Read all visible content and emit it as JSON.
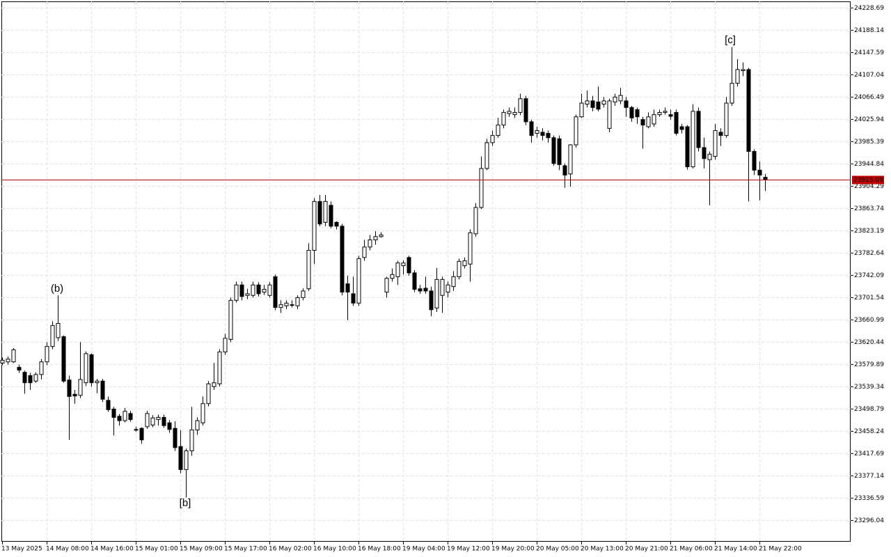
{
  "chart_data": {
    "type": "candlestick",
    "categories": [
      "13 May 2025",
      null,
      null,
      null,
      null,
      null,
      null,
      null,
      "14 May 08:00",
      null,
      null,
      null,
      null,
      null,
      null,
      null,
      "14 May 16:00",
      null,
      null,
      null,
      null,
      null,
      null,
      null,
      "15 May 01:00",
      null,
      null,
      null,
      null,
      null,
      null,
      null,
      "15 May 09:00",
      null,
      null,
      null,
      null,
      null,
      null,
      null,
      "15 May 17:00",
      null,
      null,
      null,
      null,
      null,
      null,
      null,
      "16 May 02:00",
      null,
      null,
      null,
      null,
      null,
      null,
      null,
      "16 May 10:00",
      null,
      null,
      null,
      null,
      null,
      null,
      null,
      "16 May 18:00",
      null,
      null,
      null,
      null,
      null,
      null,
      null,
      "19 May 04:00",
      null,
      null,
      null,
      null,
      null,
      null,
      null,
      "19 May 12:00",
      null,
      null,
      null,
      null,
      null,
      null,
      null,
      "19 May 20:00",
      null,
      null,
      null,
      null,
      null,
      null,
      null,
      "20 May 05:00",
      null,
      null,
      null,
      null,
      null,
      null,
      null,
      "20 May 13:00",
      null,
      null,
      null,
      null,
      null,
      null,
      null,
      "20 May 21:00",
      null,
      null,
      null,
      null,
      null,
      null,
      null,
      "21 May 06:00",
      null,
      null,
      null,
      null,
      null,
      null,
      null,
      "21 May 14:00",
      null,
      null,
      null,
      null,
      null,
      null,
      null,
      "21 May 22:00",
      null
    ],
    "open": [
      23582,
      23584,
      23584,
      23574,
      23565,
      23559,
      23549,
      23561,
      23584,
      23612,
      23628,
      23630,
      23551,
      23525,
      23523,
      23546,
      23597,
      23546,
      23549,
      23514,
      23498,
      23485,
      23477,
      23490,
      23461,
      23463,
      23466,
      23469,
      23479,
      23483,
      23473,
      23463,
      23430,
      23388,
      23422,
      23460,
      23473,
      23508,
      23539,
      23544,
      23602,
      23625,
      23696,
      23724,
      23705,
      23705,
      23724,
      23711,
      23705,
      23739,
      23683,
      23686,
      23688,
      23686,
      23701,
      23717,
      23787,
      23876,
      23838,
      23869,
      23838,
      23831,
      23726,
      23708,
      23691,
      23774,
      23793,
      23806,
      23812,
      23711,
      23736,
      23739,
      23759,
      23774,
      23746,
      23717,
      23718,
      23713,
      23682,
      23705,
      23711,
      23721,
      23739,
      23759,
      23762,
      23817,
      23865,
      23936,
      23983,
      23996,
      24015,
      24036,
      24034,
      24038,
      24063,
      24021,
      24000,
      24002,
      24000,
      23992,
      23990,
      23941,
      23926,
      23979,
      24030,
      24053,
      24059,
      24057,
      24053,
      24009,
      24057,
      24059,
      24059,
      24047,
      24043,
      24025,
      24012,
      24017,
      24034,
      24038,
      24034,
      24038,
      24012,
      24012,
      23939,
      24040,
      23974,
      23952,
      23958,
      24002,
      23996,
      24055,
      24091,
      24114,
      24116,
      23967,
      23933,
      23920
    ],
    "high": [
      23592,
      23594,
      23609,
      23579,
      23568,
      23564,
      23565,
      23589,
      23620,
      23658,
      23705,
      23632,
      23559,
      23533,
      23620,
      23603,
      23599,
      23553,
      23553,
      23521,
      23502,
      23489,
      23500,
      23495,
      23466,
      23465,
      23495,
      23487,
      23488,
      23488,
      23478,
      23476,
      23460,
      23426,
      23502,
      23483,
      23521,
      23549,
      23582,
      23607,
      23635,
      23701,
      23730,
      23730,
      23717,
      23730,
      23729,
      23724,
      23729,
      23743,
      23696,
      23696,
      23696,
      23705,
      23718,
      23800,
      23882,
      23888,
      23888,
      23876,
      23840,
      23835,
      23741,
      23739,
      23777,
      23806,
      23815,
      23822,
      23820,
      23739,
      23754,
      23768,
      23769,
      23777,
      23751,
      23724,
      23739,
      23721,
      23755,
      23739,
      23730,
      23749,
      23772,
      23774,
      23825,
      23873,
      23958,
      23990,
      24005,
      24028,
      24043,
      24047,
      24047,
      24072,
      24068,
      24025,
      24012,
      24009,
      24005,
      23996,
      23996,
      23945,
      23980,
      24034,
      24072,
      24078,
      24068,
      24085,
      24066,
      24063,
      24072,
      24083,
      24066,
      24050,
      24047,
      24030,
      24038,
      24043,
      24043,
      24047,
      24043,
      24043,
      24017,
      24015,
      24053,
      24047,
      23992,
      23967,
      24017,
      24009,
      24066,
      24157,
      24135,
      24129,
      24119,
      23971,
      23949,
      23926
    ],
    "low": [
      23578,
      23579,
      23582,
      23564,
      23526,
      23533,
      23546,
      23552,
      23578,
      23607,
      23622,
      23546,
      23442,
      23508,
      23518,
      23540,
      23539,
      23527,
      23511,
      23493,
      23450,
      23468,
      23474,
      23475,
      23457,
      23435,
      23462,
      23465,
      23468,
      23464,
      23455,
      23422,
      23381,
      23337,
      23413,
      23451,
      23468,
      23503,
      23533,
      23539,
      23597,
      23620,
      23692,
      23696,
      23698,
      23701,
      23703,
      23706,
      23701,
      23678,
      23673,
      23680,
      23683,
      23680,
      23696,
      23713,
      23762,
      23831,
      23831,
      23827,
      23825,
      23705,
      23660,
      23686,
      23686,
      23768,
      23787,
      23797,
      23810,
      23701,
      23730,
      23724,
      23743,
      23741,
      23711,
      23708,
      23708,
      23667,
      23675,
      23673,
      23701,
      23713,
      23734,
      23754,
      23730,
      23812,
      23862,
      23933,
      23977,
      23992,
      24009,
      24030,
      24028,
      24033,
      24015,
      23983,
      23992,
      23987,
      23983,
      23941,
      23933,
      23901,
      23903,
      23974,
      24028,
      24047,
      24040,
      24040,
      24047,
      24002,
      24050,
      24053,
      24030,
      24021,
      24017,
      23972,
      24009,
      24012,
      24030,
      24034,
      24025,
      23996,
      24000,
      23934,
      23936,
      23967,
      23936,
      23869,
      23952,
      23977,
      23992,
      24050,
      24085,
      24104,
      23876,
      23924,
      23878,
      23895
    ],
    "close": [
      23587,
      23589,
      23606,
      23569,
      23546,
      23546,
      23561,
      23584,
      23612,
      23650,
      23654,
      23549,
      23521,
      23522,
      23552,
      23599,
      23546,
      23549,
      23516,
      23497,
      23483,
      23477,
      23494,
      23479,
      23461,
      23442,
      23490,
      23482,
      23483,
      23468,
      23461,
      23428,
      23388,
      23422,
      23460,
      23477,
      23508,
      23544,
      23546,
      23602,
      23627,
      23696,
      23724,
      23703,
      23708,
      23724,
      23708,
      23716,
      23724,
      23683,
      23688,
      23691,
      23688,
      23701,
      23713,
      23787,
      23876,
      23835,
      23876,
      23831,
      23831,
      23711,
      23711,
      23691,
      23772,
      23793,
      23806,
      23812,
      23815,
      23736,
      23743,
      23764,
      23764,
      23746,
      23716,
      23713,
      23713,
      23679,
      23734,
      23734,
      23724,
      23739,
      23767,
      23768,
      23819,
      23865,
      23936,
      23983,
      23996,
      24015,
      24038,
      24040,
      24038,
      24063,
      24021,
      23996,
      24005,
      23996,
      23992,
      23945,
      23943,
      23924,
      23979,
      24030,
      24055,
      24059,
      24047,
      24044,
      24059,
      24059,
      24066,
      24069,
      24047,
      24028,
      24030,
      24015,
      24030,
      24034,
      24038,
      24040,
      24031,
      24000,
      24007,
      23939,
      24040,
      23974,
      23954,
      23962,
      24005,
      23996,
      24055,
      24091,
      24116,
      24116,
      23967,
      23933,
      23924,
      23915.09
    ],
    "bull_color": "#ffffff",
    "bear_color": "#000000",
    "wick_color": "#000000",
    "price_line_color": "#c00000",
    "ylim": [
      23256.7,
      24240.1
    ],
    "yticks": [
      24228.69,
      24188.14,
      24147.59,
      24107.04,
      24066.49,
      24025.94,
      23985.39,
      23944.84,
      23904.29,
      23863.74,
      23823.19,
      23782.64,
      23742.09,
      23701.54,
      23660.99,
      23620.44,
      23579.89,
      23539.34,
      23498.79,
      23458.24,
      23417.69,
      23377.14,
      23336.59,
      23296.04
    ],
    "grid": true,
    "annotations": [
      {
        "text": "(b)",
        "color": "#2323c8"
      },
      {
        "text": "[b]",
        "color": "#2a9a78"
      },
      {
        "text": "[c]",
        "color": "#3ccf3c"
      }
    ]
  }
}
